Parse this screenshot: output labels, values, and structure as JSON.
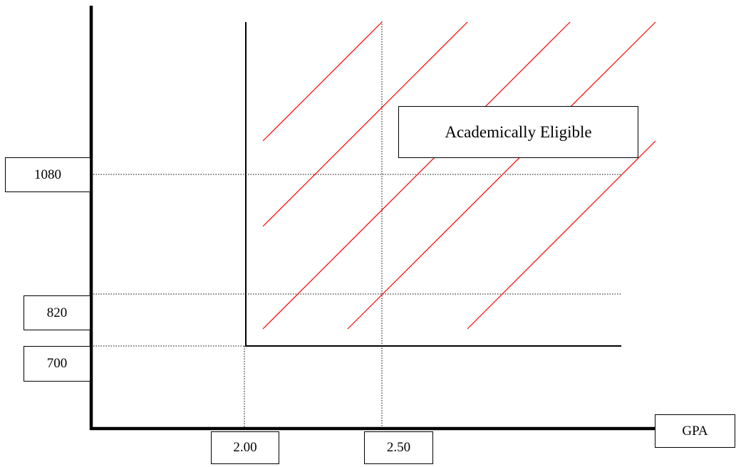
{
  "diagram": {
    "x_axis_label": "GPA",
    "y_ticks": [
      "1080",
      "820",
      "700"
    ],
    "x_ticks": [
      "2.00",
      "2.50"
    ],
    "region_label": "Academically Eligible",
    "colors": {
      "axis": "#000000",
      "guide": "#000000",
      "hatch": "#ff0000",
      "boundary": "#000000"
    }
  }
}
